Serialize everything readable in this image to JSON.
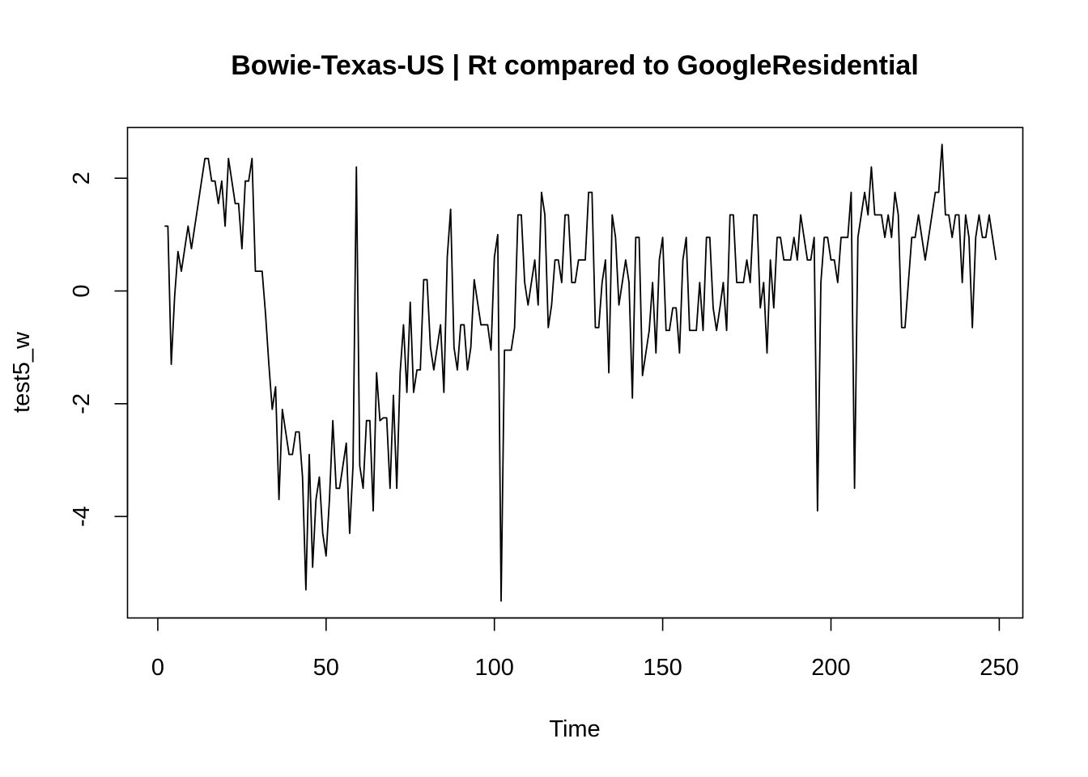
{
  "chart_data": {
    "type": "line",
    "title": "Bowie-Texas-US | Rt compared to GoogleResidential",
    "xlabel": "Time",
    "ylabel": "test5_w",
    "xlim": [
      -9,
      257
    ],
    "ylim": [
      -5.8,
      2.9
    ],
    "x_ticks": [
      0,
      50,
      100,
      150,
      200,
      250
    ],
    "y_ticks": [
      -4,
      -2,
      0,
      2
    ],
    "grid": false,
    "legend": "none",
    "line_color": "#000000",
    "series": [
      {
        "x_start": 2,
        "values": [
          1.15,
          1.15,
          -1.3,
          -0.1,
          0.7,
          0.35,
          0.75,
          1.15,
          0.75,
          1.15,
          1.55,
          1.95,
          2.35,
          2.35,
          1.95,
          1.95,
          1.55,
          1.95,
          1.15,
          2.35,
          1.95,
          1.55,
          1.55,
          0.75,
          1.95,
          1.95,
          2.35,
          0.35,
          0.35,
          0.35,
          -0.4,
          -1.3,
          -2.1,
          -1.7,
          -3.7,
          -2.1,
          -2.5,
          -2.9,
          -2.9,
          -2.5,
          -2.5,
          -3.3,
          -5.3,
          -2.9,
          -4.9,
          -3.7,
          -3.3,
          -4.3,
          -4.7,
          -3.7,
          -2.3,
          -3.5,
          -3.5,
          -3.1,
          -2.7,
          -4.3,
          -3.1,
          2.2,
          -3.1,
          -3.5,
          -2.3,
          -2.3,
          -3.9,
          -1.45,
          -2.3,
          -2.25,
          -2.25,
          -3.5,
          -1.85,
          -3.5,
          -1.45,
          -0.6,
          -1.8,
          -0.2,
          -1.8,
          -1.4,
          -1.4,
          0.2,
          0.2,
          -1.0,
          -1.4,
          -1.0,
          -0.6,
          -1.8,
          0.6,
          1.45,
          -1.0,
          -1.4,
          -0.6,
          -0.6,
          -1.4,
          -1.0,
          0.2,
          -0.2,
          -0.6,
          -0.6,
          -0.6,
          -1.05,
          0.6,
          1.0,
          -5.5,
          -1.05,
          -1.05,
          -1.05,
          -0.65,
          1.35,
          1.35,
          0.15,
          -0.25,
          0.15,
          0.55,
          -0.25,
          1.75,
          1.35,
          -0.65,
          -0.25,
          0.55,
          0.55,
          0.15,
          1.35,
          1.35,
          0.15,
          0.15,
          0.55,
          0.55,
          0.55,
          1.75,
          1.75,
          -0.65,
          -0.65,
          0.15,
          0.55,
          -1.45,
          1.35,
          0.95,
          -0.25,
          0.15,
          0.55,
          0.15,
          -1.9,
          0.95,
          0.95,
          -1.5,
          -1.1,
          -0.7,
          0.15,
          -1.1,
          0.55,
          0.95,
          -0.7,
          -0.7,
          -0.3,
          -0.3,
          -1.1,
          0.55,
          0.95,
          -0.7,
          -0.7,
          -0.7,
          0.15,
          -0.7,
          0.95,
          0.95,
          -0.3,
          -0.7,
          -0.3,
          0.15,
          -0.7,
          1.35,
          1.35,
          0.15,
          0.15,
          0.15,
          0.55,
          0.15,
          1.35,
          1.35,
          -0.3,
          0.15,
          -1.1,
          0.55,
          -0.3,
          0.95,
          0.95,
          0.55,
          0.55,
          0.55,
          0.95,
          0.55,
          1.35,
          0.95,
          0.55,
          0.55,
          0.95,
          -3.9,
          0.15,
          0.95,
          0.95,
          0.55,
          0.55,
          0.15,
          0.95,
          0.95,
          0.95,
          1.75,
          -3.5,
          0.95,
          1.35,
          1.75,
          1.35,
          2.2,
          1.35,
          1.35,
          1.35,
          0.95,
          1.35,
          0.95,
          1.75,
          1.35,
          -0.65,
          -0.65,
          0.15,
          0.95,
          0.95,
          1.35,
          0.95,
          0.55,
          0.95,
          1.35,
          1.75,
          1.75,
          2.6,
          1.35,
          1.35,
          0.95,
          1.35,
          1.35,
          0.15,
          1.35,
          0.95,
          -0.65,
          0.95,
          1.35,
          0.95,
          0.95,
          1.35,
          0.95,
          0.55
        ]
      }
    ]
  }
}
